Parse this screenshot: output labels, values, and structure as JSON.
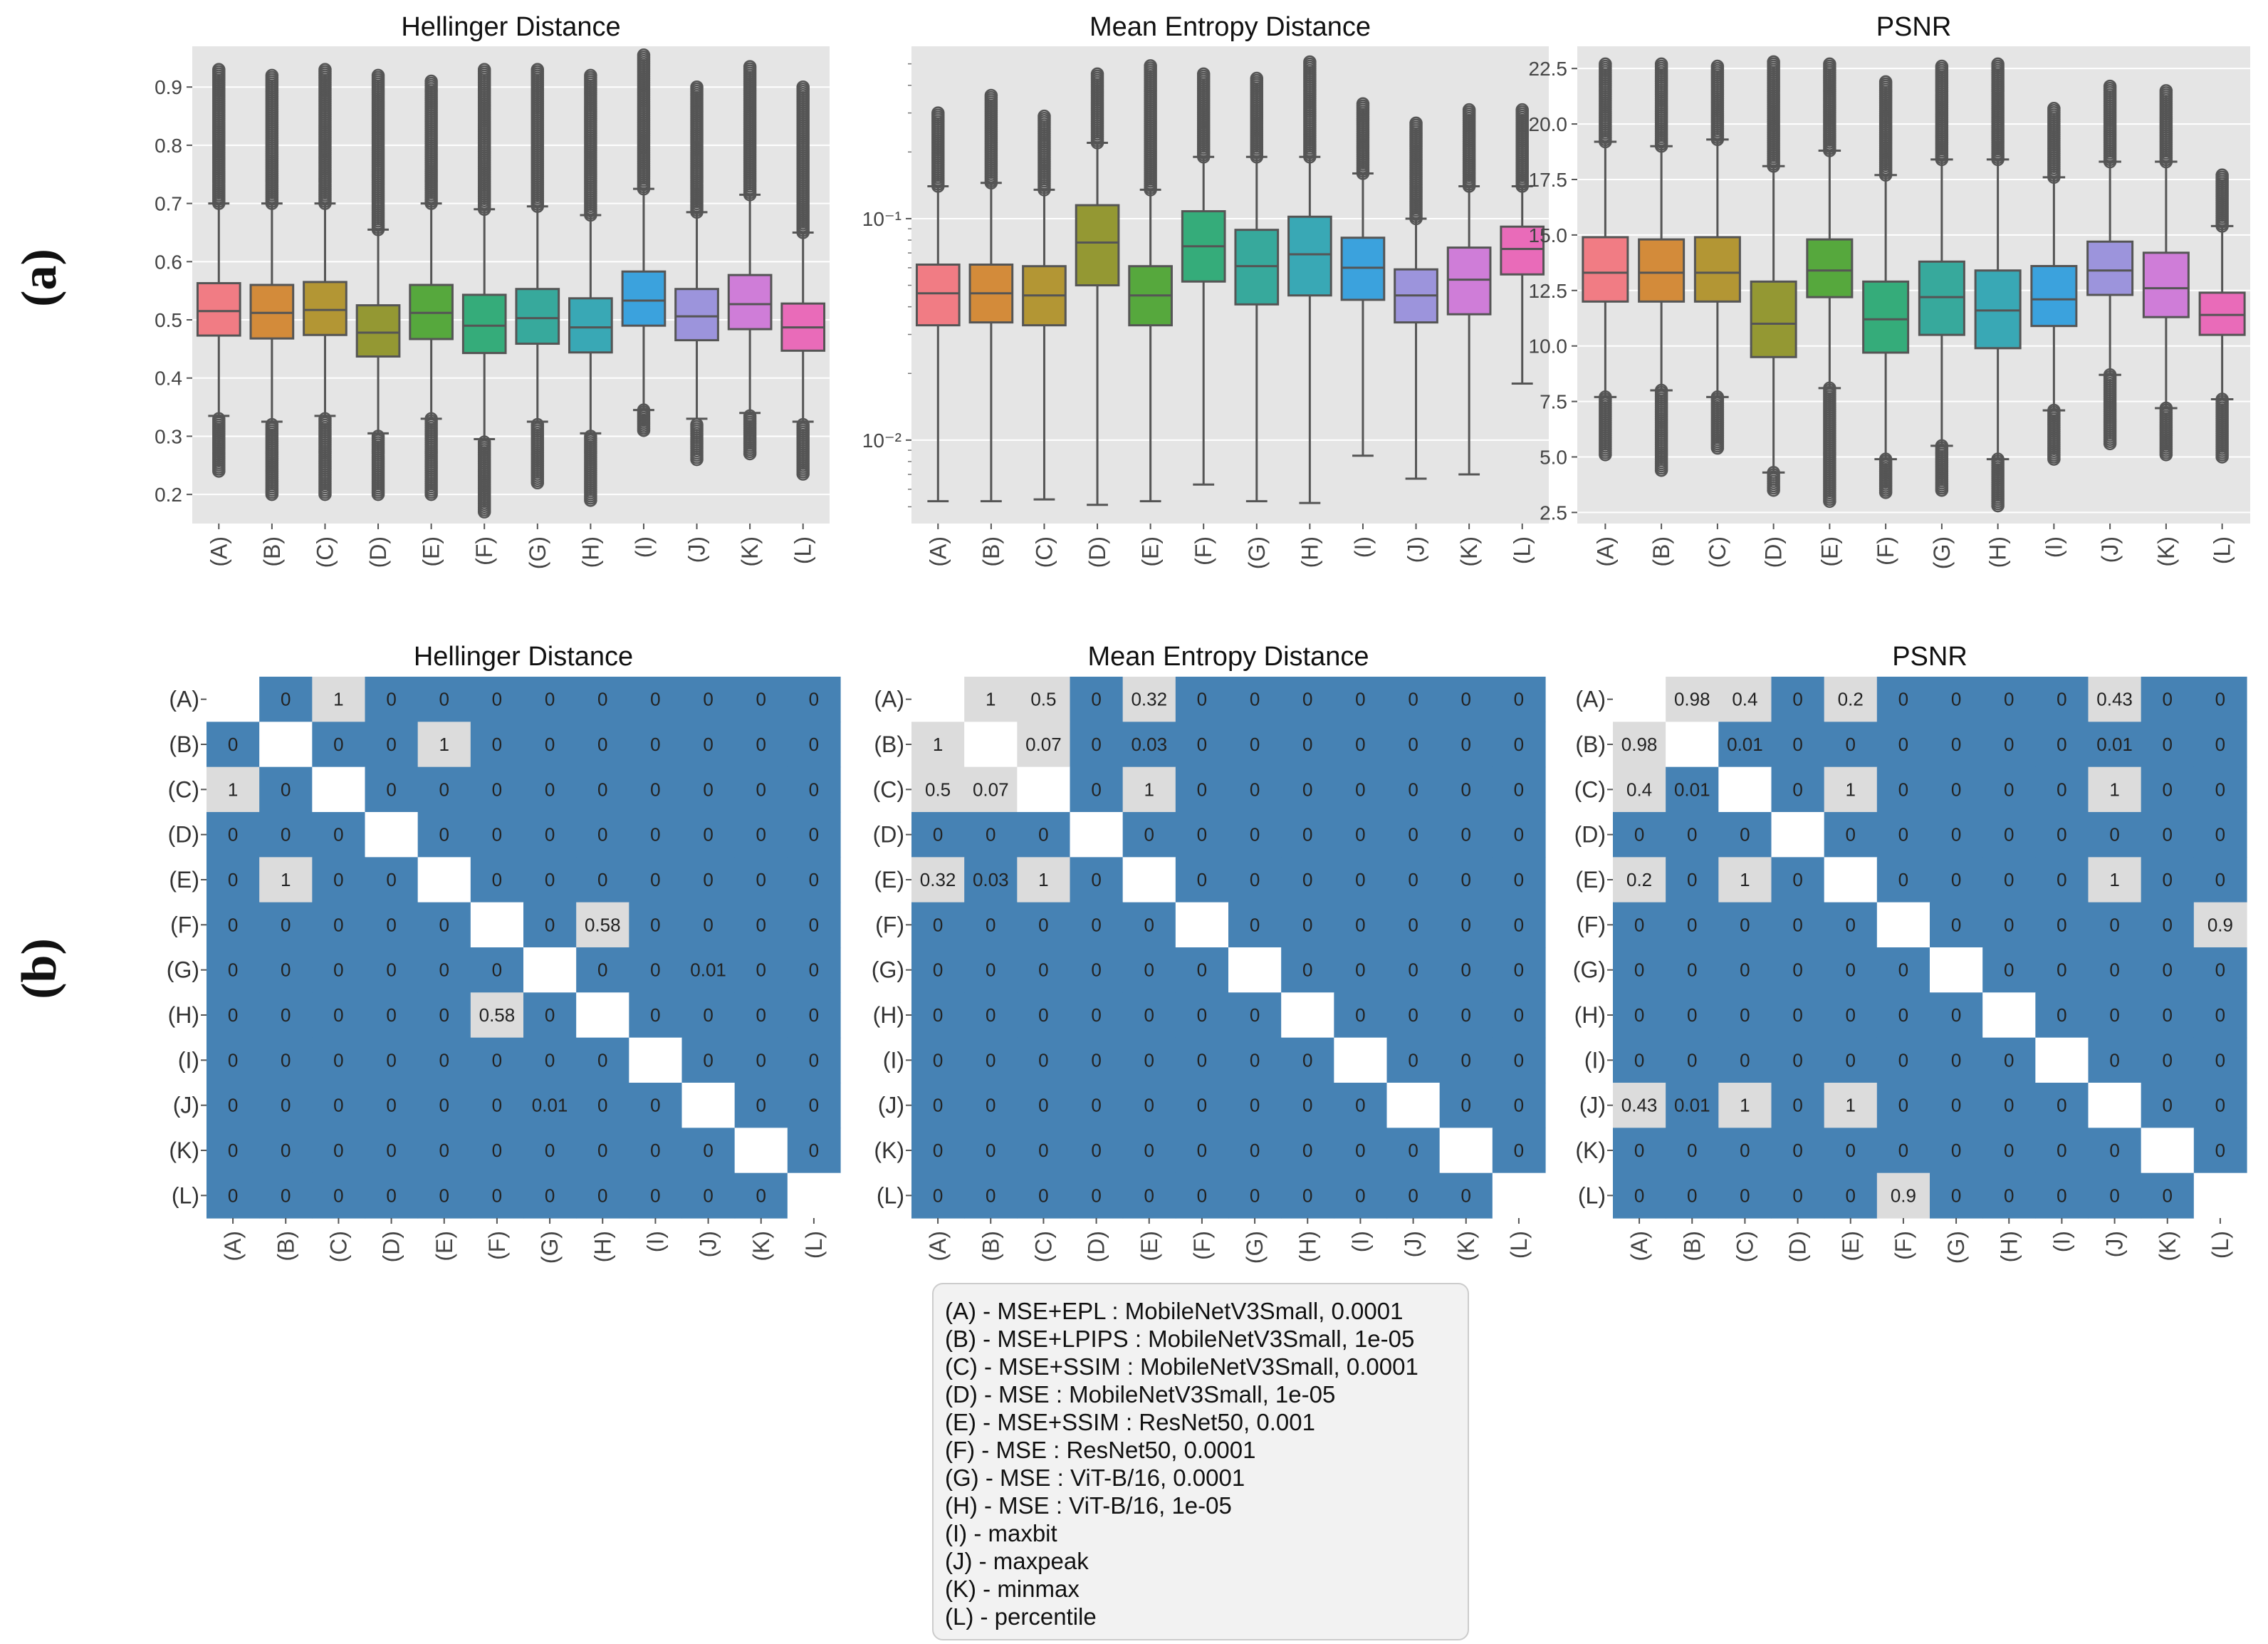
{
  "panel_labels": {
    "a": "(a)",
    "b": "(b)"
  },
  "categories": [
    "(A)",
    "(B)",
    "(C)",
    "(D)",
    "(E)",
    "(F)",
    "(G)",
    "(H)",
    "(I)",
    "(J)",
    "(K)",
    "(L)"
  ],
  "box_colors": [
    "#f17c84",
    "#d38b3a",
    "#b39634",
    "#949833",
    "#56a83d",
    "#35ac7a",
    "#37a99c",
    "#39a8b5",
    "#3ba2dd",
    "#9c94dc",
    "#cf7dd8",
    "#e96bb9"
  ],
  "heatmap_colors": {
    "low": "#4682b4",
    "high": "#dcdcdc",
    "diagonal": "#ffffff"
  },
  "legend_items": [
    "(A) - MSE+EPL : MobileNetV3Small, 0.0001",
    "(B) - MSE+LPIPS : MobileNetV3Small, 1e-05",
    "(C) - MSE+SSIM : MobileNetV3Small, 0.0001",
    "(D) - MSE : MobileNetV3Small, 1e-05",
    "(E) - MSE+SSIM : ResNet50, 0.001",
    "(F) - MSE : ResNet50, 0.0001",
    "(G) - MSE : ViT-B/16, 0.0001",
    "(H) - MSE : ViT-B/16, 1e-05",
    "(I) - maxbit",
    "(J) - maxpeak",
    "(K) - minmax",
    "(L) - percentile"
  ],
  "chart_data": [
    {
      "type": "box",
      "title": "Hellinger Distance",
      "scale": "linear",
      "ylim": [
        0.15,
        0.97
      ],
      "yticks": [
        0.2,
        0.3,
        0.4,
        0.5,
        0.6,
        0.7,
        0.8,
        0.9
      ],
      "ytick_labels": [
        "0.2",
        "0.3",
        "0.4",
        "0.5",
        "0.6",
        "0.7",
        "0.8",
        "0.9"
      ],
      "boxes": [
        {
          "q1": 0.473,
          "median": 0.515,
          "q3": 0.563,
          "low": 0.335,
          "high": 0.7,
          "out_low": [
            0.24,
            0.33
          ],
          "out_high": [
            0.7,
            0.93
          ]
        },
        {
          "q1": 0.468,
          "median": 0.512,
          "q3": 0.56,
          "low": 0.325,
          "high": 0.7,
          "out_low": [
            0.2,
            0.32
          ],
          "out_high": [
            0.7,
            0.92
          ]
        },
        {
          "q1": 0.474,
          "median": 0.517,
          "q3": 0.565,
          "low": 0.335,
          "high": 0.7,
          "out_low": [
            0.2,
            0.33
          ],
          "out_high": [
            0.7,
            0.93
          ]
        },
        {
          "q1": 0.437,
          "median": 0.478,
          "q3": 0.525,
          "low": 0.305,
          "high": 0.655,
          "out_low": [
            0.2,
            0.3
          ],
          "out_high": [
            0.655,
            0.92
          ]
        },
        {
          "q1": 0.467,
          "median": 0.512,
          "q3": 0.56,
          "low": 0.33,
          "high": 0.7,
          "out_low": [
            0.2,
            0.33
          ],
          "out_high": [
            0.7,
            0.91
          ]
        },
        {
          "q1": 0.443,
          "median": 0.49,
          "q3": 0.543,
          "low": 0.295,
          "high": 0.69,
          "out_low": [
            0.17,
            0.29
          ],
          "out_high": [
            0.69,
            0.93
          ]
        },
        {
          "q1": 0.459,
          "median": 0.503,
          "q3": 0.553,
          "low": 0.325,
          "high": 0.695,
          "out_low": [
            0.22,
            0.32
          ],
          "out_high": [
            0.695,
            0.93
          ]
        },
        {
          "q1": 0.444,
          "median": 0.487,
          "q3": 0.537,
          "low": 0.305,
          "high": 0.68,
          "out_low": [
            0.19,
            0.3
          ],
          "out_high": [
            0.68,
            0.92
          ]
        },
        {
          "q1": 0.49,
          "median": 0.533,
          "q3": 0.583,
          "low": 0.345,
          "high": 0.725,
          "out_low": [
            0.31,
            0.345
          ],
          "out_high": [
            0.725,
            0.955
          ]
        },
        {
          "q1": 0.465,
          "median": 0.506,
          "q3": 0.553,
          "low": 0.33,
          "high": 0.685,
          "out_low": [
            0.26,
            0.32
          ],
          "out_high": [
            0.685,
            0.9
          ]
        },
        {
          "q1": 0.484,
          "median": 0.527,
          "q3": 0.577,
          "low": 0.34,
          "high": 0.715,
          "out_low": [
            0.27,
            0.335
          ],
          "out_high": [
            0.715,
            0.935
          ]
        },
        {
          "q1": 0.447,
          "median": 0.487,
          "q3": 0.528,
          "low": 0.325,
          "high": 0.65,
          "out_low": [
            0.235,
            0.32
          ],
          "out_high": [
            0.65,
            0.9
          ]
        }
      ]
    },
    {
      "type": "box",
      "title": "Mean Entropy Distance",
      "scale": "log",
      "ylim": [
        0.0042,
        0.6
      ],
      "yticks": [
        0.01,
        0.1
      ],
      "ytick_labels": [
        "10⁻²",
        "10⁻¹"
      ],
      "boxes": [
        {
          "q1": 0.033,
          "median": 0.046,
          "q3": 0.062,
          "low": 0.0053,
          "high": 0.14,
          "out_low": [],
          "out_high": [
            0.14,
            0.3
          ]
        },
        {
          "q1": 0.034,
          "median": 0.046,
          "q3": 0.062,
          "low": 0.0053,
          "high": 0.145,
          "out_low": [],
          "out_high": [
            0.145,
            0.36
          ]
        },
        {
          "q1": 0.033,
          "median": 0.045,
          "q3": 0.061,
          "low": 0.0054,
          "high": 0.135,
          "out_low": [],
          "out_high": [
            0.135,
            0.29
          ]
        },
        {
          "q1": 0.05,
          "median": 0.078,
          "q3": 0.115,
          "low": 0.0051,
          "high": 0.22,
          "out_low": [],
          "out_high": [
            0.22,
            0.45
          ]
        },
        {
          "q1": 0.033,
          "median": 0.045,
          "q3": 0.061,
          "low": 0.0053,
          "high": 0.135,
          "out_low": [],
          "out_high": [
            0.135,
            0.49
          ]
        },
        {
          "q1": 0.052,
          "median": 0.075,
          "q3": 0.108,
          "low": 0.0063,
          "high": 0.19,
          "out_low": [],
          "out_high": [
            0.19,
            0.45
          ]
        },
        {
          "q1": 0.041,
          "median": 0.061,
          "q3": 0.089,
          "low": 0.0053,
          "high": 0.19,
          "out_low": [],
          "out_high": [
            0.19,
            0.43
          ]
        },
        {
          "q1": 0.045,
          "median": 0.069,
          "q3": 0.102,
          "low": 0.0052,
          "high": 0.19,
          "out_low": [],
          "out_high": [
            0.19,
            0.51
          ]
        },
        {
          "q1": 0.043,
          "median": 0.06,
          "q3": 0.082,
          "low": 0.0085,
          "high": 0.16,
          "out_low": [],
          "out_high": [
            0.16,
            0.33
          ]
        },
        {
          "q1": 0.034,
          "median": 0.045,
          "q3": 0.059,
          "low": 0.0067,
          "high": 0.1,
          "out_low": [],
          "out_high": [
            0.1,
            0.27
          ]
        },
        {
          "q1": 0.037,
          "median": 0.053,
          "q3": 0.074,
          "low": 0.007,
          "high": 0.14,
          "out_low": [],
          "out_high": [
            0.14,
            0.31
          ]
        },
        {
          "q1": 0.056,
          "median": 0.073,
          "q3": 0.092,
          "low": 0.018,
          "high": 0.14,
          "out_low": [],
          "out_high": [
            0.14,
            0.31
          ]
        }
      ]
    },
    {
      "type": "box",
      "title": "PSNR",
      "scale": "linear",
      "ylim": [
        2.0,
        23.5
      ],
      "yticks": [
        2.5,
        5.0,
        7.5,
        10.0,
        12.5,
        15.0,
        17.5,
        20.0,
        22.5
      ],
      "ytick_labels": [
        "2.5",
        "5.0",
        "7.5",
        "10.0",
        "12.5",
        "15.0",
        "17.5",
        "20.0",
        "22.5"
      ],
      "boxes": [
        {
          "q1": 12.0,
          "median": 13.3,
          "q3": 14.9,
          "low": 7.7,
          "high": 19.2,
          "out_low": [
            5.1,
            7.7
          ],
          "out_high": [
            19.2,
            22.7
          ]
        },
        {
          "q1": 12.0,
          "median": 13.3,
          "q3": 14.8,
          "low": 8.0,
          "high": 19.0,
          "out_low": [
            4.4,
            8.0
          ],
          "out_high": [
            19.0,
            22.7
          ]
        },
        {
          "q1": 12.0,
          "median": 13.3,
          "q3": 14.9,
          "low": 7.7,
          "high": 19.3,
          "out_low": [
            5.4,
            7.7
          ],
          "out_high": [
            19.3,
            22.6
          ]
        },
        {
          "q1": 9.5,
          "median": 11.0,
          "q3": 12.9,
          "low": 4.3,
          "high": 18.1,
          "out_low": [
            3.5,
            4.3
          ],
          "out_high": [
            18.1,
            22.8
          ]
        },
        {
          "q1": 12.2,
          "median": 13.4,
          "q3": 14.8,
          "low": 8.1,
          "high": 18.8,
          "out_low": [
            3.0,
            8.1
          ],
          "out_high": [
            18.8,
            22.7
          ]
        },
        {
          "q1": 9.7,
          "median": 11.2,
          "q3": 12.9,
          "low": 4.9,
          "high": 17.7,
          "out_low": [
            3.4,
            4.9
          ],
          "out_high": [
            17.7,
            21.9
          ]
        },
        {
          "q1": 10.5,
          "median": 12.2,
          "q3": 13.8,
          "low": 5.5,
          "high": 18.4,
          "out_low": [
            3.5,
            5.5
          ],
          "out_high": [
            18.4,
            22.6
          ]
        },
        {
          "q1": 9.9,
          "median": 11.6,
          "q3": 13.4,
          "low": 4.9,
          "high": 18.4,
          "out_low": [
            2.8,
            4.9
          ],
          "out_high": [
            18.4,
            22.7
          ]
        },
        {
          "q1": 10.9,
          "median": 12.1,
          "q3": 13.6,
          "low": 7.1,
          "high": 17.6,
          "out_low": [
            4.9,
            7.1
          ],
          "out_high": [
            17.6,
            20.7
          ]
        },
        {
          "q1": 12.3,
          "median": 13.4,
          "q3": 14.7,
          "low": 8.7,
          "high": 18.3,
          "out_low": [
            5.6,
            8.7
          ],
          "out_high": [
            18.3,
            21.7
          ]
        },
        {
          "q1": 11.3,
          "median": 12.6,
          "q3": 14.2,
          "low": 7.2,
          "high": 18.3,
          "out_low": [
            5.1,
            7.2
          ],
          "out_high": [
            18.3,
            21.5
          ]
        },
        {
          "q1": 10.5,
          "median": 11.4,
          "q3": 12.4,
          "low": 7.6,
          "high": 15.4,
          "out_low": [
            5.0,
            7.6
          ],
          "out_high": [
            15.4,
            17.7
          ]
        }
      ]
    },
    {
      "type": "heatmap",
      "title": "Hellinger Distance",
      "cells": [
        [
          null,
          "0",
          "1",
          "0",
          "0",
          "0",
          "0",
          "0",
          "0",
          "0",
          "0",
          "0"
        ],
        [
          "0",
          null,
          "0",
          "0",
          "1",
          "0",
          "0",
          "0",
          "0",
          "0",
          "0",
          "0"
        ],
        [
          "1",
          "0",
          null,
          "0",
          "0",
          "0",
          "0",
          "0",
          "0",
          "0",
          "0",
          "0"
        ],
        [
          "0",
          "0",
          "0",
          null,
          "0",
          "0",
          "0",
          "0",
          "0",
          "0",
          "0",
          "0"
        ],
        [
          "0",
          "1",
          "0",
          "0",
          null,
          "0",
          "0",
          "0",
          "0",
          "0",
          "0",
          "0"
        ],
        [
          "0",
          "0",
          "0",
          "0",
          "0",
          null,
          "0",
          "0.58",
          "0",
          "0",
          "0",
          "0"
        ],
        [
          "0",
          "0",
          "0",
          "0",
          "0",
          "0",
          null,
          "0",
          "0",
          "0.01",
          "0",
          "0"
        ],
        [
          "0",
          "0",
          "0",
          "0",
          "0",
          "0.58",
          "0",
          null,
          "0",
          "0",
          "0",
          "0"
        ],
        [
          "0",
          "0",
          "0",
          "0",
          "0",
          "0",
          "0",
          "0",
          null,
          "0",
          "0",
          "0"
        ],
        [
          "0",
          "0",
          "0",
          "0",
          "0",
          "0",
          "0.01",
          "0",
          "0",
          null,
          "0",
          "0"
        ],
        [
          "0",
          "0",
          "0",
          "0",
          "0",
          "0",
          "0",
          "0",
          "0",
          "0",
          null,
          "0"
        ],
        [
          "0",
          "0",
          "0",
          "0",
          "0",
          "0",
          "0",
          "0",
          "0",
          "0",
          "0",
          null
        ]
      ]
    },
    {
      "type": "heatmap",
      "title": "Mean Entropy Distance",
      "cells": [
        [
          null,
          "1",
          "0.5",
          "0",
          "0.32",
          "0",
          "0",
          "0",
          "0",
          "0",
          "0",
          "0"
        ],
        [
          "1",
          null,
          "0.07",
          "0",
          "0.03",
          "0",
          "0",
          "0",
          "0",
          "0",
          "0",
          "0"
        ],
        [
          "0.5",
          "0.07",
          null,
          "0",
          "1",
          "0",
          "0",
          "0",
          "0",
          "0",
          "0",
          "0"
        ],
        [
          "0",
          "0",
          "0",
          null,
          "0",
          "0",
          "0",
          "0",
          "0",
          "0",
          "0",
          "0"
        ],
        [
          "0.32",
          "0.03",
          "1",
          "0",
          null,
          "0",
          "0",
          "0",
          "0",
          "0",
          "0",
          "0"
        ],
        [
          "0",
          "0",
          "0",
          "0",
          "0",
          null,
          "0",
          "0",
          "0",
          "0",
          "0",
          "0"
        ],
        [
          "0",
          "0",
          "0",
          "0",
          "0",
          "0",
          null,
          "0",
          "0",
          "0",
          "0",
          "0"
        ],
        [
          "0",
          "0",
          "0",
          "0",
          "0",
          "0",
          "0",
          null,
          "0",
          "0",
          "0",
          "0"
        ],
        [
          "0",
          "0",
          "0",
          "0",
          "0",
          "0",
          "0",
          "0",
          null,
          "0",
          "0",
          "0"
        ],
        [
          "0",
          "0",
          "0",
          "0",
          "0",
          "0",
          "0",
          "0",
          "0",
          null,
          "0",
          "0"
        ],
        [
          "0",
          "0",
          "0",
          "0",
          "0",
          "0",
          "0",
          "0",
          "0",
          "0",
          null,
          "0"
        ],
        [
          "0",
          "0",
          "0",
          "0",
          "0",
          "0",
          "0",
          "0",
          "0",
          "0",
          "0",
          null
        ]
      ]
    },
    {
      "type": "heatmap",
      "title": "PSNR",
      "cells": [
        [
          null,
          "0.98",
          "0.4",
          "0",
          "0.2",
          "0",
          "0",
          "0",
          "0",
          "0.43",
          "0",
          "0"
        ],
        [
          "0.98",
          null,
          "0.01",
          "0",
          "0",
          "0",
          "0",
          "0",
          "0",
          "0.01",
          "0",
          "0"
        ],
        [
          "0.4",
          "0.01",
          null,
          "0",
          "1",
          "0",
          "0",
          "0",
          "0",
          "1",
          "0",
          "0"
        ],
        [
          "0",
          "0",
          "0",
          null,
          "0",
          "0",
          "0",
          "0",
          "0",
          "0",
          "0",
          "0"
        ],
        [
          "0.2",
          "0",
          "1",
          "0",
          null,
          "0",
          "0",
          "0",
          "0",
          "1",
          "0",
          "0"
        ],
        [
          "0",
          "0",
          "0",
          "0",
          "0",
          null,
          "0",
          "0",
          "0",
          "0",
          "0",
          "0.9"
        ],
        [
          "0",
          "0",
          "0",
          "0",
          "0",
          "0",
          null,
          "0",
          "0",
          "0",
          "0",
          "0"
        ],
        [
          "0",
          "0",
          "0",
          "0",
          "0",
          "0",
          "0",
          null,
          "0",
          "0",
          "0",
          "0"
        ],
        [
          "0",
          "0",
          "0",
          "0",
          "0",
          "0",
          "0",
          "0",
          null,
          "0",
          "0",
          "0"
        ],
        [
          "0.43",
          "0.01",
          "1",
          "0",
          "1",
          "0",
          "0",
          "0",
          "0",
          null,
          "0",
          "0"
        ],
        [
          "0",
          "0",
          "0",
          "0",
          "0",
          "0",
          "0",
          "0",
          "0",
          "0",
          null,
          "0"
        ],
        [
          "0",
          "0",
          "0",
          "0",
          "0",
          "0.9",
          "0",
          "0",
          "0",
          "0",
          "0",
          null
        ]
      ]
    }
  ]
}
